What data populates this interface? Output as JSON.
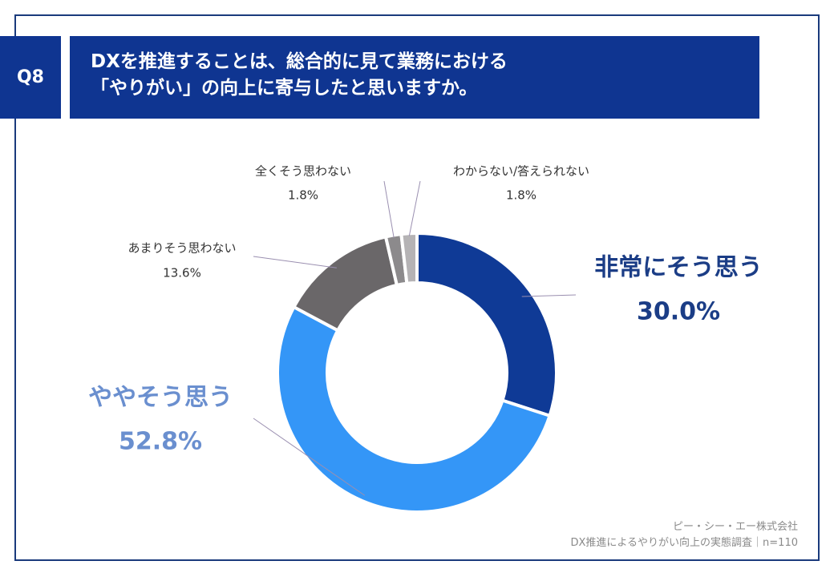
{
  "header": {
    "question_no": "Q8",
    "title_line1": "DXを推進することは、総合的に見て業務における",
    "title_line2": "「やりがい」の向上に寄与したと思いますか。"
  },
  "chart_data": {
    "type": "pie",
    "donut": true,
    "slices": [
      {
        "label": "非常にそう思う",
        "value": 30.0,
        "display": "30.0%",
        "color": "#0f3a96"
      },
      {
        "label": "ややそう思う",
        "value": 52.8,
        "display": "52.8%",
        "color": "#3496f7"
      },
      {
        "label": "あまりそう思わない",
        "value": 13.6,
        "display": "13.6%",
        "color": "#6a6769"
      },
      {
        "label": "全くそう思わない",
        "value": 1.8,
        "display": "1.8%",
        "color": "#8c8a8c"
      },
      {
        "label": "わからない/答えられない",
        "value": 1.8,
        "display": "1.8%",
        "color": "#b5b3b5"
      }
    ],
    "label_colors": [
      "#1b3d86",
      "#6a8fcf",
      "#333333",
      "#333333",
      "#333333"
    ]
  },
  "footer": {
    "company": "ピー・シー・エー株式会社",
    "survey": "DX推進によるやりがい向上の実態調査｜n=110"
  }
}
